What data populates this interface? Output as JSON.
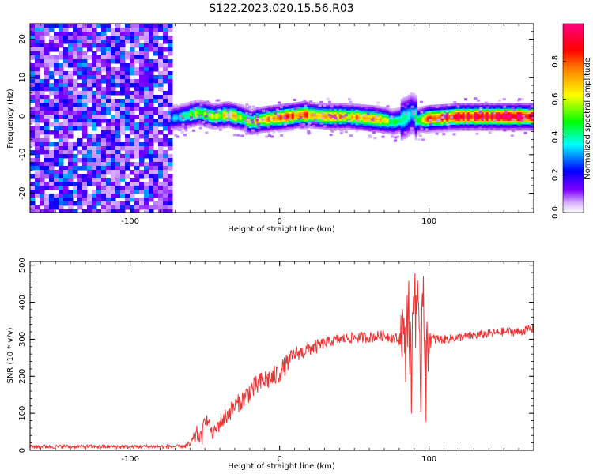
{
  "title": "S122.2023.020.15.56.R03",
  "chart_data": [
    {
      "type": "heatmap",
      "xlabel": "Height of straight line (km)",
      "ylabel": "Frequency (Hz)",
      "xlim": [
        -167,
        170
      ],
      "ylim": [
        -25,
        24
      ],
      "xticks": [
        -100,
        0,
        100
      ],
      "yticks": [
        -20,
        -10,
        0,
        10,
        20
      ],
      "grid": false,
      "colorbar": {
        "label": "Normalized spectral amplitude",
        "range": [
          0.0,
          1.0
        ],
        "ticks": [
          0.0,
          0.2,
          0.4,
          0.6,
          0.8
        ],
        "tick_labels": [
          "0.0",
          "0.2",
          "0.4",
          "0.6",
          "0.8"
        ],
        "colormap": [
          "#ffffff",
          "#8000ff",
          "#0000ff",
          "#00ffff",
          "#00ff00",
          "#ffff00",
          "#ff8000",
          "#ff0000",
          "#ff0080"
        ]
      },
      "noise_region": {
        "x_range": [
          -167,
          -73
        ],
        "max_amplitude": 0.3
      },
      "ridge": {
        "x": [
          -73,
          -65,
          -55,
          -45,
          -35,
          -25,
          -20,
          -15,
          -5,
          5,
          15,
          30,
          45,
          60,
          70,
          75,
          80,
          85,
          88,
          92,
          100,
          120,
          140,
          170
        ],
        "frequency": [
          -0.5,
          0,
          1,
          0,
          0.5,
          -0.5,
          -1.5,
          -1,
          -0.5,
          0,
          0.5,
          0,
          0,
          -0.5,
          -1,
          -1.5,
          -1,
          0,
          1,
          -1,
          -0.5,
          0,
          0,
          0
        ],
        "amplitude": [
          0.3,
          0.45,
          0.55,
          0.6,
          0.65,
          0.6,
          0.55,
          0.7,
          0.75,
          0.8,
          0.8,
          0.75,
          0.7,
          0.75,
          0.6,
          0.5,
          0.45,
          0.4,
          0.35,
          0.5,
          0.8,
          0.9,
          0.95,
          0.95
        ]
      }
    },
    {
      "type": "line",
      "xlabel": "Height of straight line (km)",
      "ylabel": "SNR (10 * v/v)",
      "xlim": [
        -167,
        170
      ],
      "ylim": [
        0,
        510
      ],
      "xticks": [
        -100,
        0,
        100
      ],
      "yticks": [
        0,
        100,
        200,
        300,
        400,
        500
      ],
      "grid": false,
      "color": "#ee3333",
      "series": [
        {
          "x": [
            -167,
            -150,
            -120,
            -90,
            -65,
            -60,
            -55,
            -52,
            -50,
            -47,
            -45,
            -40,
            -35,
            -30,
            -25,
            -20,
            -15,
            -10,
            -5,
            0,
            5,
            10,
            15,
            20,
            25,
            30,
            40,
            50,
            60,
            70,
            80,
            82,
            84,
            86,
            88,
            90,
            92,
            94,
            96,
            98,
            100,
            102,
            110,
            120,
            130,
            140,
            150,
            160,
            170
          ],
          "y": [
            10,
            10,
            10,
            10,
            10,
            15,
            45,
            30,
            90,
            70,
            40,
            75,
            95,
            120,
            135,
            160,
            175,
            190,
            195,
            210,
            235,
            260,
            265,
            275,
            280,
            290,
            300,
            305,
            305,
            310,
            300,
            340,
            250,
            420,
            180,
            460,
            380,
            140,
            510,
            200,
            310,
            300,
            300,
            305,
            310,
            315,
            320,
            320,
            330
          ],
          "noise_amplitude": [
            5,
            5,
            5,
            5,
            5,
            10,
            25,
            20,
            20,
            15,
            15,
            25,
            25,
            25,
            25,
            30,
            30,
            30,
            30,
            30,
            25,
            20,
            20,
            20,
            20,
            15,
            15,
            15,
            15,
            15,
            15,
            100,
            100,
            120,
            120,
            150,
            150,
            150,
            150,
            150,
            50,
            15,
            12,
            12,
            12,
            12,
            12,
            12,
            12
          ]
        }
      ]
    }
  ]
}
